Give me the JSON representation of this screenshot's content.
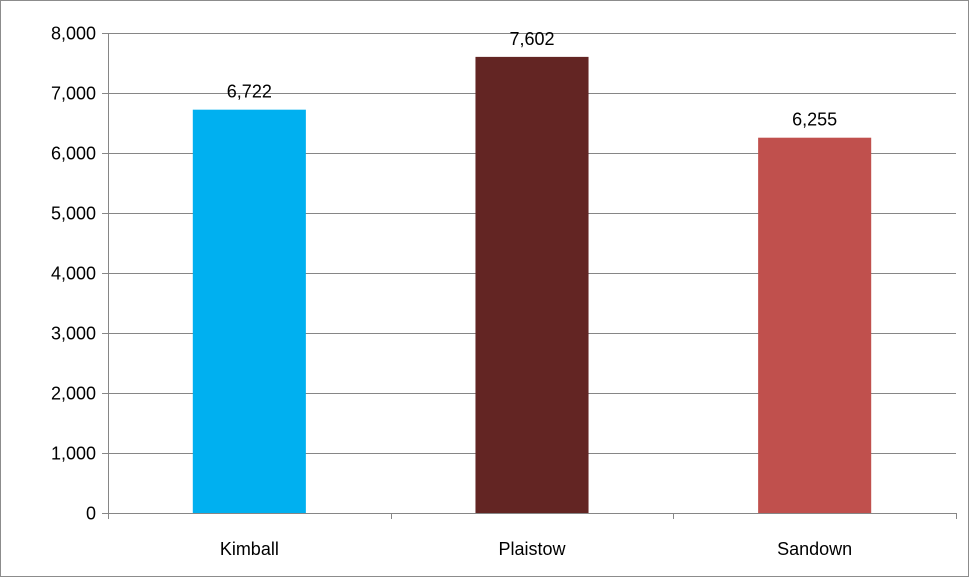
{
  "chart_data": {
    "type": "bar",
    "categories": [
      "Kimball",
      "Plaistow",
      "Sandown"
    ],
    "values": [
      6722,
      7602,
      6255
    ],
    "value_labels": [
      "6,722",
      "7,602",
      "6,255"
    ],
    "bar_colors": [
      "#00b0f0",
      "#632523",
      "#c0504d"
    ],
    "ylim": [
      0,
      8000
    ],
    "yticks": [
      0,
      1000,
      2000,
      3000,
      4000,
      5000,
      6000,
      7000,
      8000
    ],
    "ytick_labels": [
      "0",
      "1,000",
      "2,000",
      "3,000",
      "4,000",
      "5,000",
      "6,000",
      "7,000",
      "8,000"
    ],
    "title": "",
    "xlabel": "",
    "ylabel": "",
    "grid": true,
    "legend": "none",
    "gridline_color": "#868686",
    "axis_color": "#868686"
  }
}
